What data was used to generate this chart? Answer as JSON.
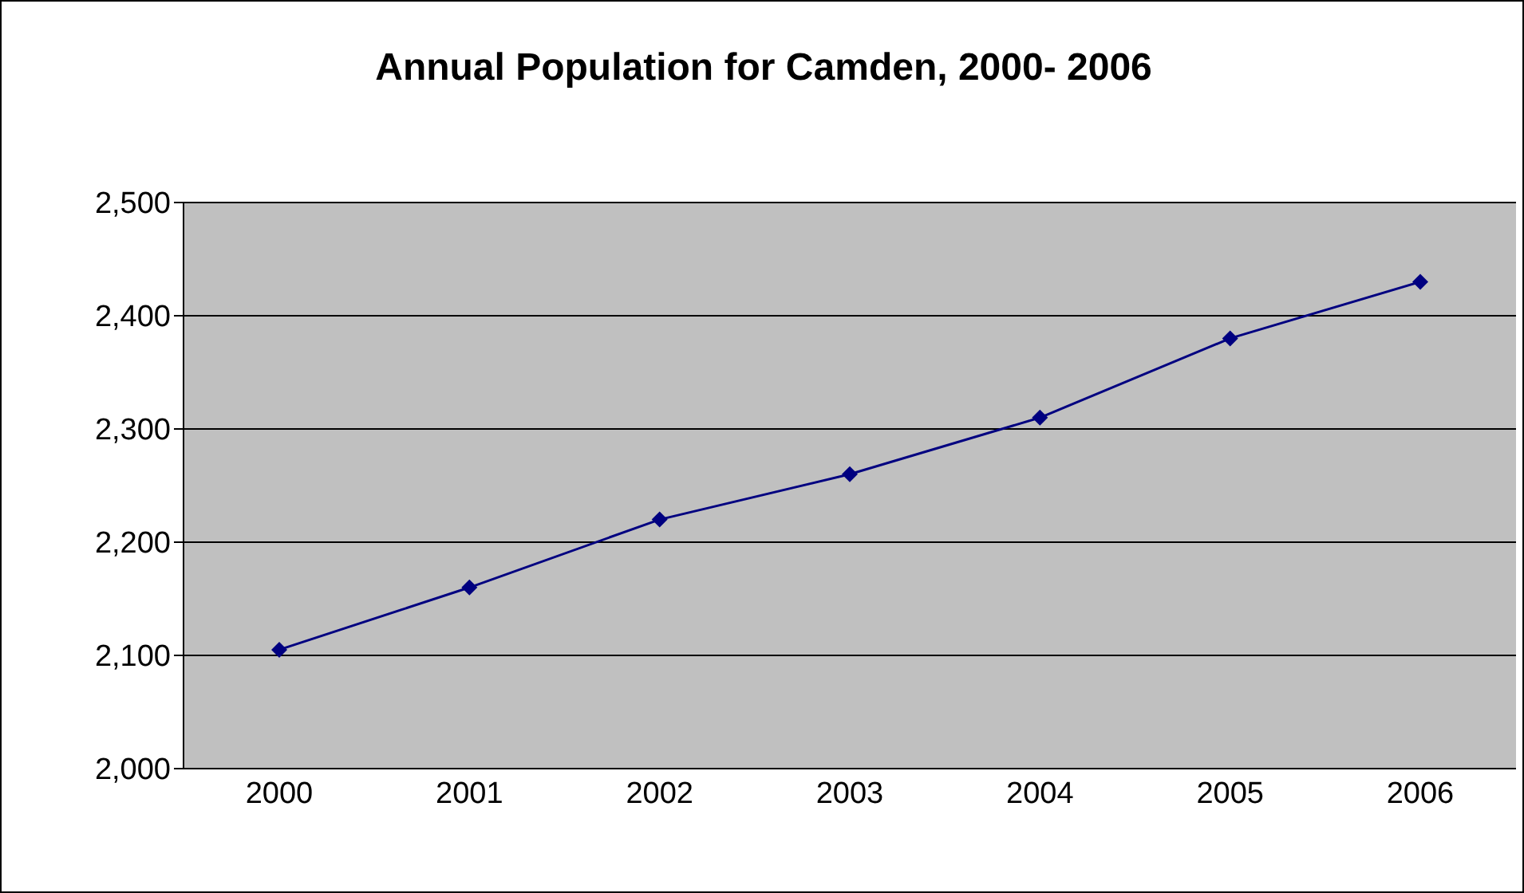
{
  "chart_data": {
    "type": "line",
    "title": "Annual Population for Camden, 2000- 2006",
    "categories": [
      "2000",
      "2001",
      "2002",
      "2003",
      "2004",
      "2005",
      "2006"
    ],
    "series": [
      {
        "color": "#000080",
        "values": [
          2105,
          2160,
          2220,
          2260,
          2310,
          2380,
          2430
        ]
      }
    ],
    "ylim": [
      2000,
      2500
    ],
    "yticks": [
      {
        "value": 2000,
        "label": "2,000"
      },
      {
        "value": 2100,
        "label": "2,100"
      },
      {
        "value": 2200,
        "label": "2,200"
      },
      {
        "value": 2300,
        "label": "2,300"
      },
      {
        "value": 2400,
        "label": "2,400"
      },
      {
        "value": 2500,
        "label": "2,500"
      }
    ],
    "grid": "y",
    "legend": false,
    "marker": "diamond",
    "line_style": "solid"
  }
}
